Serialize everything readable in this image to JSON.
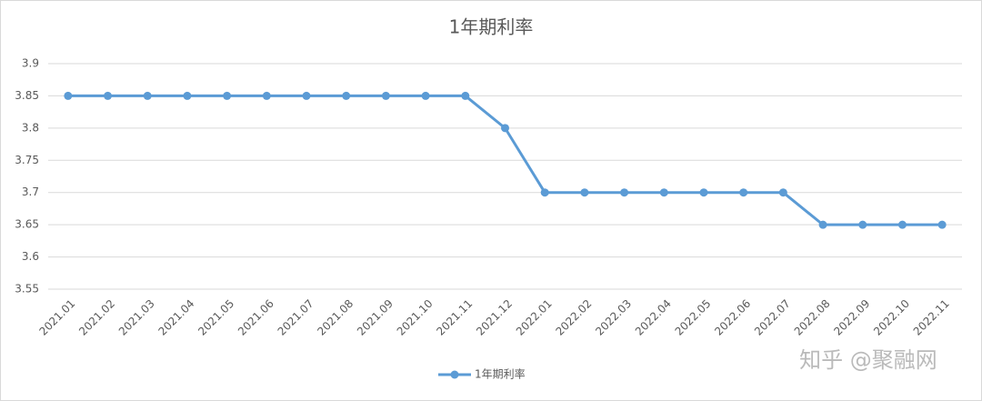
{
  "chart_data": {
    "type": "line",
    "title": "1年期利率",
    "categories": [
      "2021.01",
      "2021.02",
      "2021.03",
      "2021.04",
      "2021.05",
      "2021.06",
      "2021.07",
      "2021.08",
      "2021.09",
      "2021.10",
      "2021.11",
      "2021.12",
      "2022.01",
      "2022.02",
      "2022.03",
      "2022.04",
      "2022.05",
      "2022.06",
      "2022.07",
      "2022.08",
      "2022.09",
      "2022.10",
      "2022.11"
    ],
    "series": [
      {
        "name": "1年期利率",
        "color": "#5b9bd5",
        "values": [
          3.85,
          3.85,
          3.85,
          3.85,
          3.85,
          3.85,
          3.85,
          3.85,
          3.85,
          3.85,
          3.85,
          3.8,
          3.7,
          3.7,
          3.7,
          3.7,
          3.7,
          3.7,
          3.7,
          3.65,
          3.65,
          3.65,
          3.65
        ]
      }
    ],
    "ylim": [
      3.55,
      3.9
    ],
    "yticks": [
      3.55,
      3.6,
      3.65,
      3.7,
      3.75,
      3.8,
      3.85,
      3.9
    ],
    "grid": true,
    "legend": "bottom",
    "watermark": "知乎 @聚融网"
  }
}
